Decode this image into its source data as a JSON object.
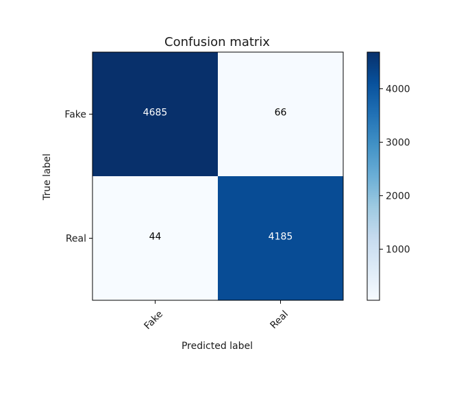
{
  "chart_data": {
    "type": "heatmap",
    "title": "Confusion matrix",
    "xlabel": "Predicted label",
    "ylabel": "True label",
    "row_labels": [
      "Fake",
      "Real"
    ],
    "col_labels": [
      "Fake",
      "Real"
    ],
    "values": [
      [
        4685,
        66
      ],
      [
        44,
        4185
      ]
    ],
    "colormap": "Blues",
    "colorbar": {
      "ticks": [
        1000,
        2000,
        3000,
        4000
      ],
      "tick_labels": [
        "1000",
        "2000",
        "3000",
        "4000"
      ],
      "range": [
        44,
        4685
      ]
    },
    "grid": false
  }
}
